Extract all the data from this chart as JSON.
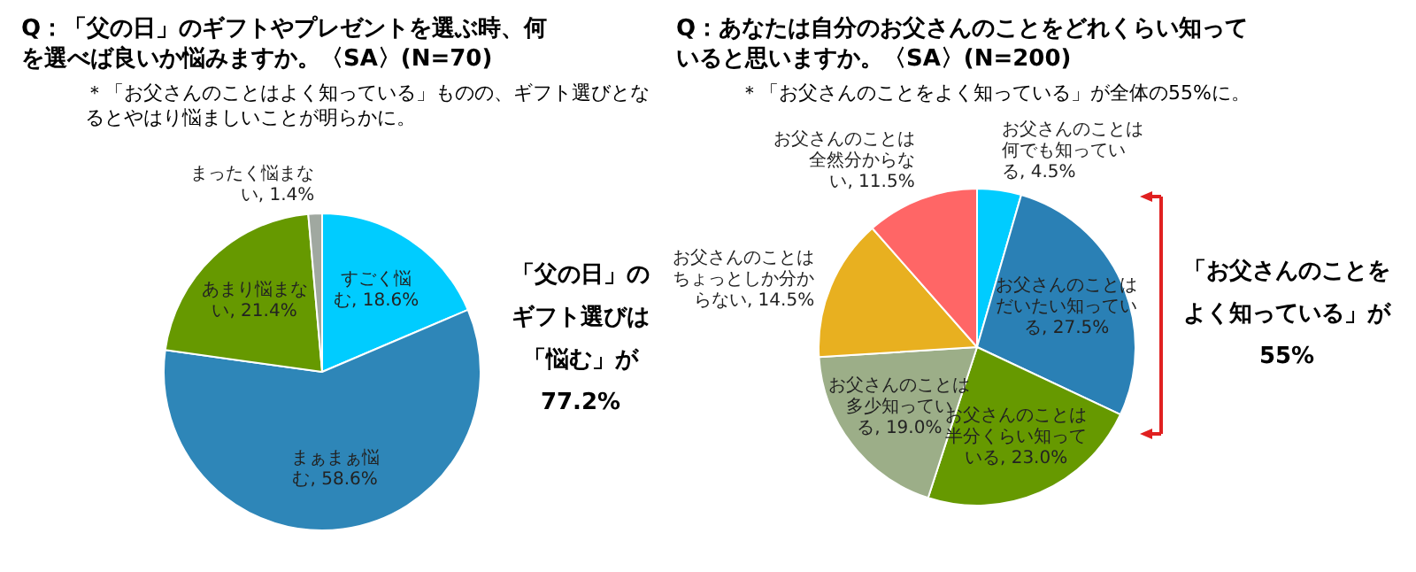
{
  "chart_data": [
    {
      "type": "pie",
      "title": "Q：「父の日」のギフトやプレゼントを選ぶ時、何を選べば良いか悩みますか。〈SA〉(N=70)",
      "subtitle": "＊「お父さんのことはよく知っている」ものの、ギフト選びとなるとやはり悩ましいことが明らかに。",
      "categories": [
        "すごく悩む",
        "まぁまぁ悩む",
        "あまり悩まない",
        "まったく悩まない"
      ],
      "values": [
        18.6,
        58.6,
        21.4,
        1.4
      ],
      "colors": [
        "#00ccff",
        "#2e86b8",
        "#669900",
        "#a0a8a0"
      ],
      "value_labels": [
        "18.6%",
        "58.6%",
        "21.4%",
        "1.4%"
      ],
      "annotations": [
        "「父の日」のギフト選びは「悩む」が77.2%"
      ]
    },
    {
      "type": "pie",
      "title": "Q：あなたは自分のお父さんのことをどれくらい知っていると思いますか。〈SA〉(N=200)",
      "subtitle": "＊「お父さんのことをよく知っている」が全体の55%に。",
      "categories": [
        "お父さんのことは何でも知っている",
        "お父さんのことはだいたい知っている",
        "お父さんのことは半分くらい知っている",
        "お父さんのことは多少知っている",
        "お父さんのことはちょっとしか分からない",
        "お父さんのことは全然分からない"
      ],
      "values": [
        4.5,
        27.5,
        23.0,
        19.0,
        14.5,
        11.5
      ],
      "colors": [
        "#00ccff",
        "#2a80b5",
        "#669900",
        "#9cae88",
        "#e8b020",
        "#ff6666"
      ],
      "value_labels": [
        "4.5%",
        "27.5%",
        "23.0%",
        "19.0%",
        "14.5%",
        "11.5%"
      ],
      "annotations": [
        "「お父さんのことをよく知っている」が55%"
      ]
    }
  ]
}
